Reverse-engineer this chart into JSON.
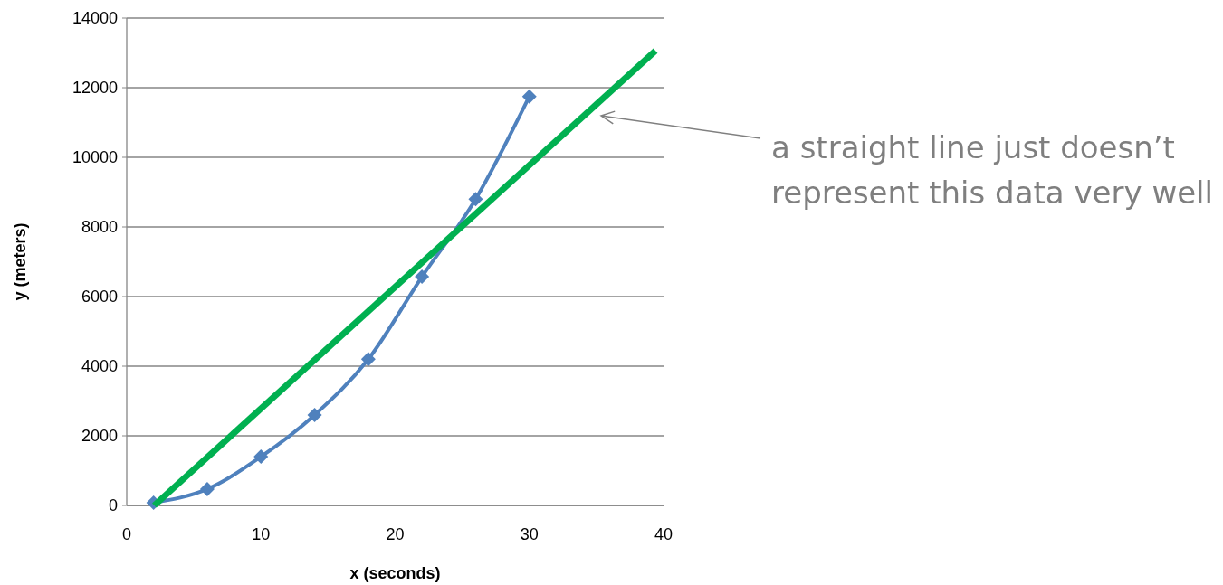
{
  "chart_data": {
    "type": "line",
    "xlabel": "x (seconds)",
    "ylabel": "y (meters)",
    "xlim": [
      0,
      40
    ],
    "xticks": [
      0,
      10,
      20,
      30,
      40
    ],
    "ylim": [
      0,
      14000
    ],
    "yticks": [
      0,
      2000,
      4000,
      6000,
      8000,
      10000,
      12000,
      14000
    ],
    "grid": "y",
    "marker": "diamond",
    "line_style": "solid",
    "series": [
      {
        "color": "#4f81bd",
        "x": [
          2,
          6,
          10,
          14,
          18,
          22,
          26,
          30
        ],
        "values": [
          80,
          470,
          1400,
          2600,
          4200,
          6570,
          8800,
          11750
        ]
      },
      {
        "color": "#00b050",
        "marker": "none",
        "x": [
          2.05,
          39.4
        ],
        "values": [
          0,
          13060
        ]
      }
    ],
    "annotations": [
      "a straight line just doesn’t represent this data very well"
    ]
  }
}
